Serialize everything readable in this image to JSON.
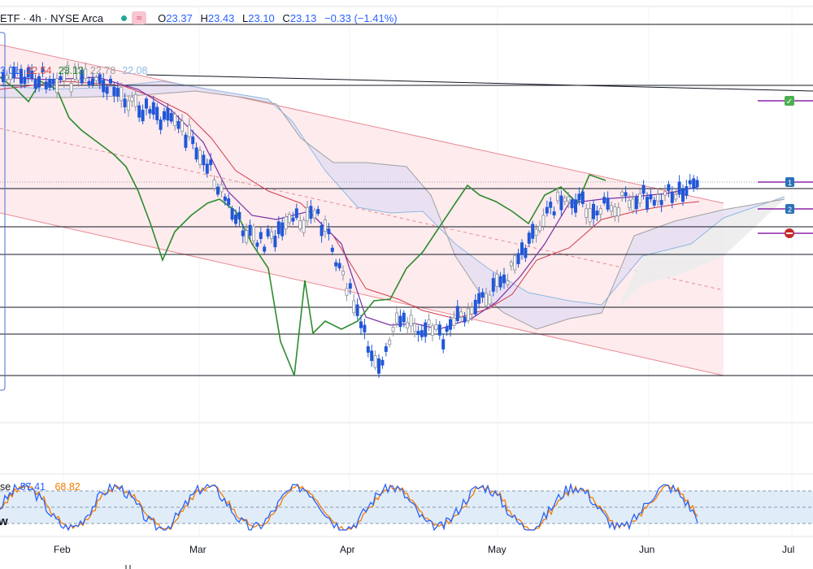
{
  "header": {
    "symbol": "ETF · 4h · NYSE Arca",
    "wave_icon": "≈",
    "ohlc": {
      "o_label": "O",
      "o": "23.37",
      "h_label": "H",
      "h": "23.43",
      "l_label": "L",
      "l": "23.10",
      "c_label": "C",
      "c": "23.13",
      "change": "−0.33 (−1.41%)"
    }
  },
  "ichimoku_legend": [
    {
      "text": "3.01",
      "color": "#2962ff"
    },
    {
      "text": "22.54",
      "color": "#e04848"
    },
    {
      "text": "23.13",
      "color": "#2e8b2e"
    },
    {
      "text": "22.78",
      "color": "#9e9e9e"
    },
    {
      "text": "22.08",
      "color": "#90b8e0"
    }
  ],
  "stoch_legend": {
    "name": "se",
    "k": "57.41",
    "k_color": "#2962ff",
    "d": "68.82",
    "d_color": "#f57c00"
  },
  "side_marker": "w",
  "alert_badges": [
    "1",
    "2"
  ],
  "chart_data": {
    "type": "line",
    "x_ticks": [
      "Feb",
      "Mar",
      "Apr",
      "May",
      "Jun",
      "Jul"
    ],
    "price_scale": {
      "top": 23.6,
      "bottom": 21.0
    },
    "stoch_scale": {
      "top": 100,
      "bottom": 0,
      "bands": [
        80,
        20
      ]
    },
    "price": [
      23.0,
      23.1,
      22.9,
      22.7,
      22.5,
      22.3,
      22.4,
      22.1,
      21.9,
      22.0,
      22.2,
      22.0,
      21.7,
      21.5,
      21.4,
      21.6,
      21.9,
      22.2,
      22.5,
      22.6,
      22.7,
      22.75,
      22.9,
      23.1,
      23.2
    ]
  },
  "colors": {
    "channel_fill": "#fde7ea",
    "channel_line": "#e88a93",
    "cloud_fill": "#e3def2",
    "cloud_fill_2": "#ececec",
    "tenkan": "#7a30a6",
    "kijun": "#cf3a4a",
    "chikou": "#2e8b2e",
    "span_b": "#90b8e0",
    "up": "#ffffff",
    "down": "#2157d8",
    "stoch_band": "#e0edf8"
  }
}
